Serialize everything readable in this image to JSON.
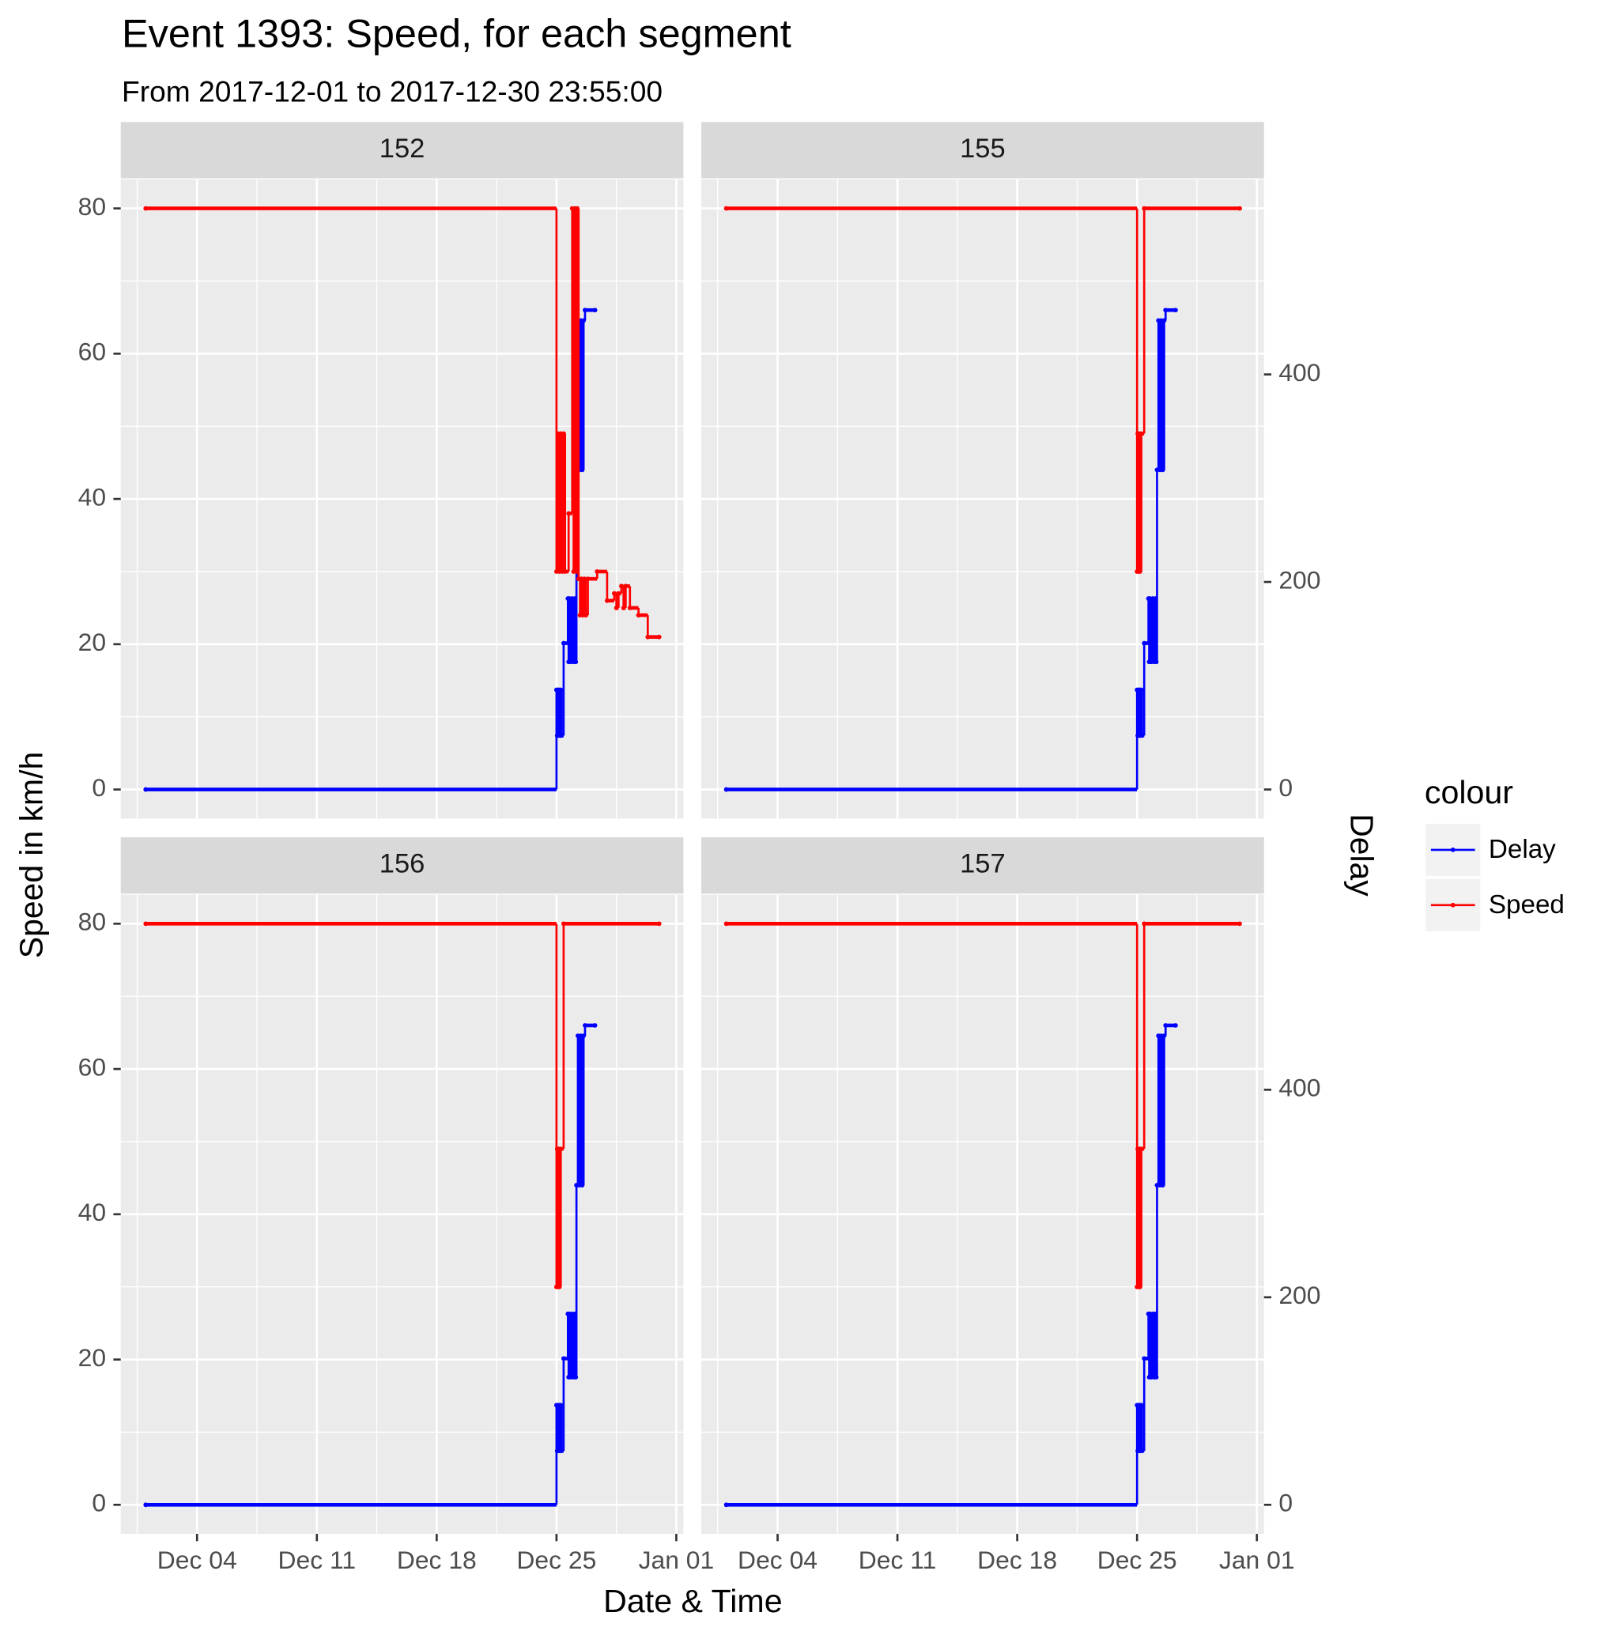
{
  "chart_data": {
    "type": "line",
    "step": true,
    "title": "Event 1393: Speed, for each segment",
    "subtitle": "From 2017-12-01 to 2017-12-30 23:55:00",
    "x_label": "Date & Time",
    "y_label": "Speed in km/h",
    "y2_label": "Delay",
    "legend_title": "colour",
    "grid": true,
    "xlim": [
      "2017-11-29 13:00",
      "2018-01-01 10:00"
    ],
    "xticks": [
      {
        "value": "2017-12-04",
        "label": "Dec 04"
      },
      {
        "value": "2017-12-11",
        "label": "Dec 11"
      },
      {
        "value": "2017-12-18",
        "label": "Dec 18"
      },
      {
        "value": "2017-12-25",
        "label": "Dec 25"
      },
      {
        "value": "2018-01-01",
        "label": "Jan 01"
      }
    ],
    "ylim": [
      -4,
      84
    ],
    "yticks": [
      0,
      20,
      40,
      60,
      80
    ],
    "y2lim": [
      -28,
      588
    ],
    "y2ticks": [
      0,
      200,
      400
    ],
    "facets": [
      {
        "label": "152",
        "series": [
          {
            "name": "Delay",
            "color": "#0000ff",
            "axis": "y2",
            "x": [
              "2017-12-01 00:00",
              "2017-12-25 00:00",
              "2017-12-25 01:00",
              "2017-12-25 02:00",
              "2017-12-25 03:00",
              "2017-12-25 04:00",
              "2017-12-25 05:00",
              "2017-12-25 06:00",
              "2017-12-25 07:00",
              "2017-12-25 10:00",
              "2017-12-25 16:00",
              "2017-12-25 17:00",
              "2017-12-25 18:00",
              "2017-12-25 20:00",
              "2017-12-25 22:00",
              "2017-12-26 00:00",
              "2017-12-26 02:00",
              "2017-12-26 03:00",
              "2017-12-26 04:00",
              "2017-12-26 06:00",
              "2017-12-26 08:00",
              "2017-12-26 10:00",
              "2017-12-26 12:00",
              "2017-12-26 14:00",
              "2017-12-26 16:00",
              "2017-12-27 06:00"
            ],
            "values": [
              0,
              96,
              52,
              96,
              52,
              96,
              52,
              96,
              52,
              141,
              184,
              123,
              184,
              123,
              184,
              123,
              184,
              123,
              308,
              452,
              308,
              452,
              308,
              452,
              462,
              462
            ]
          },
          {
            "name": "Speed",
            "color": "#ff0000",
            "x": [
              "2017-12-01 00:00",
              "2017-12-25 00:00",
              "2017-12-25 02:00",
              "2017-12-25 04:00",
              "2017-12-25 06:00",
              "2017-12-25 08:00",
              "2017-12-25 10:00",
              "2017-12-25 12:00",
              "2017-12-25 17:00",
              "2017-12-25 22:00",
              "2017-12-26 00:00",
              "2017-12-26 02:00",
              "2017-12-26 04:00",
              "2017-12-26 05:00",
              "2017-12-26 07:00",
              "2017-12-26 09:00",
              "2017-12-26 11:00",
              "2017-12-26 13:00",
              "2017-12-26 15:00",
              "2017-12-26 17:00",
              "2017-12-26 20:00",
              "2017-12-27 09:00",
              "2017-12-27 23:00",
              "2017-12-28 09:00",
              "2017-12-28 12:00",
              "2017-12-28 15:00",
              "2017-12-28 19:00",
              "2017-12-28 22:00",
              "2017-12-29 01:00",
              "2017-12-29 07:00",
              "2017-12-29 19:00",
              "2017-12-30 08:00",
              "2017-12-30 23:55"
            ],
            "values": [
              80,
              30,
              49,
              30,
              49,
              30,
              49,
              30,
              38,
              80,
              30,
              80,
              30,
              80,
              29,
              24,
              29,
              24,
              29,
              24,
              29,
              30,
              26,
              27,
              25,
              27,
              28,
              25,
              28,
              25,
              24,
              21,
              21
            ]
          }
        ]
      },
      {
        "label": "155",
        "series": [
          {
            "name": "Delay",
            "color": "#0000ff",
            "axis": "y2",
            "x": [
              "2017-12-01 00:00",
              "2017-12-25 00:00",
              "2017-12-25 01:00",
              "2017-12-25 02:00",
              "2017-12-25 03:00",
              "2017-12-25 04:00",
              "2017-12-25 05:00",
              "2017-12-25 06:00",
              "2017-12-25 07:00",
              "2017-12-25 10:00",
              "2017-12-25 16:00",
              "2017-12-25 17:00",
              "2017-12-25 18:00",
              "2017-12-25 20:00",
              "2017-12-25 22:00",
              "2017-12-26 00:00",
              "2017-12-26 02:00",
              "2017-12-26 03:00",
              "2017-12-26 04:00",
              "2017-12-26 06:00",
              "2017-12-26 08:00",
              "2017-12-26 10:00",
              "2017-12-26 12:00",
              "2017-12-26 14:00",
              "2017-12-26 16:00",
              "2017-12-27 06:00"
            ],
            "values": [
              0,
              96,
              52,
              96,
              52,
              96,
              52,
              96,
              52,
              141,
              184,
              123,
              184,
              123,
              184,
              123,
              184,
              123,
              308,
              452,
              308,
              452,
              308,
              452,
              462,
              462
            ]
          },
          {
            "name": "Speed",
            "color": "#ff0000",
            "x": [
              "2017-12-01 00:00",
              "2017-12-25 00:00",
              "2017-12-25 01:00",
              "2017-12-25 02:00",
              "2017-12-25 03:00",
              "2017-12-25 04:00",
              "2017-12-25 06:00",
              "2017-12-25 10:00",
              "2017-12-30 23:55"
            ],
            "values": [
              80,
              30,
              49,
              30,
              49,
              30,
              49,
              80,
              80
            ]
          }
        ]
      },
      {
        "label": "156",
        "series": [
          {
            "name": "Delay",
            "color": "#0000ff",
            "axis": "y2",
            "x": [
              "2017-12-01 00:00",
              "2017-12-25 00:00",
              "2017-12-25 01:00",
              "2017-12-25 02:00",
              "2017-12-25 03:00",
              "2017-12-25 04:00",
              "2017-12-25 05:00",
              "2017-12-25 06:00",
              "2017-12-25 07:00",
              "2017-12-25 10:00",
              "2017-12-25 16:00",
              "2017-12-25 17:00",
              "2017-12-25 18:00",
              "2017-12-25 20:00",
              "2017-12-25 22:00",
              "2017-12-26 00:00",
              "2017-12-26 02:00",
              "2017-12-26 03:00",
              "2017-12-26 04:00",
              "2017-12-26 06:00",
              "2017-12-26 08:00",
              "2017-12-26 10:00",
              "2017-12-26 12:00",
              "2017-12-26 14:00",
              "2017-12-26 16:00",
              "2017-12-27 06:00"
            ],
            "values": [
              0,
              96,
              52,
              96,
              52,
              96,
              52,
              96,
              52,
              141,
              184,
              123,
              184,
              123,
              184,
              123,
              184,
              123,
              308,
              452,
              308,
              452,
              308,
              452,
              462,
              462
            ]
          },
          {
            "name": "Speed",
            "color": "#ff0000",
            "x": [
              "2017-12-01 00:00",
              "2017-12-25 00:00",
              "2017-12-25 01:00",
              "2017-12-25 02:00",
              "2017-12-25 03:00",
              "2017-12-25 04:00",
              "2017-12-25 06:00",
              "2017-12-25 10:00",
              "2017-12-30 23:55"
            ],
            "values": [
              80,
              30,
              49,
              30,
              49,
              30,
              49,
              80,
              80
            ]
          }
        ]
      },
      {
        "label": "157",
        "series": [
          {
            "name": "Delay",
            "color": "#0000ff",
            "axis": "y2",
            "x": [
              "2017-12-01 00:00",
              "2017-12-25 00:00",
              "2017-12-25 01:00",
              "2017-12-25 02:00",
              "2017-12-25 03:00",
              "2017-12-25 04:00",
              "2017-12-25 05:00",
              "2017-12-25 06:00",
              "2017-12-25 07:00",
              "2017-12-25 10:00",
              "2017-12-25 16:00",
              "2017-12-25 17:00",
              "2017-12-25 18:00",
              "2017-12-25 20:00",
              "2017-12-25 22:00",
              "2017-12-26 00:00",
              "2017-12-26 02:00",
              "2017-12-26 03:00",
              "2017-12-26 04:00",
              "2017-12-26 06:00",
              "2017-12-26 08:00",
              "2017-12-26 10:00",
              "2017-12-26 12:00",
              "2017-12-26 14:00",
              "2017-12-26 16:00",
              "2017-12-27 06:00"
            ],
            "values": [
              0,
              96,
              52,
              96,
              52,
              96,
              52,
              96,
              52,
              141,
              184,
              123,
              184,
              123,
              184,
              123,
              184,
              123,
              308,
              452,
              308,
              452,
              308,
              452,
              462,
              462
            ]
          },
          {
            "name": "Speed",
            "color": "#ff0000",
            "x": [
              "2017-12-01 00:00",
              "2017-12-25 00:00",
              "2017-12-25 01:00",
              "2017-12-25 02:00",
              "2017-12-25 03:00",
              "2017-12-25 04:00",
              "2017-12-25 06:00",
              "2017-12-25 10:00",
              "2017-12-30 23:55"
            ],
            "values": [
              80,
              30,
              49,
              30,
              49,
              30,
              49,
              80,
              80
            ]
          }
        ]
      }
    ]
  }
}
